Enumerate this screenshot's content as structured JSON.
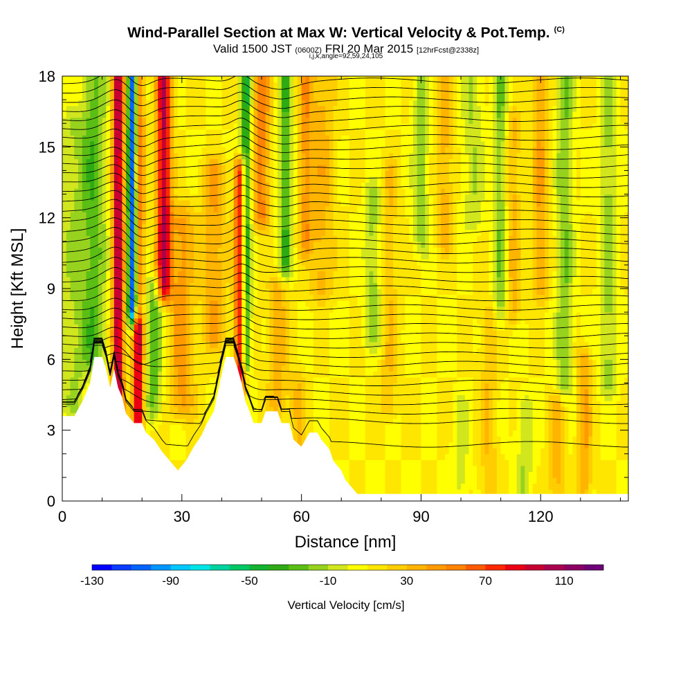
{
  "title": {
    "main": "Wind-Parallel Section at Max W: Vertical Velocity & Pot.Temp.",
    "copyright": "(C)",
    "valid_prefix": "Valid 1500 JST",
    "valid_utc": "(0600Z)",
    "valid_date": "FRI 20 Mar 2015",
    "forecast": "[12hrFcst@2338z]",
    "params": "i,j,k,angle=92,59,24,105"
  },
  "chart_data": {
    "type": "heatmap",
    "xlabel": "Distance [nm]",
    "ylabel": "Height [Kft MSL]",
    "xlim": [
      0,
      142
    ],
    "ylim": [
      0,
      18
    ],
    "x_ticks": [
      0,
      30,
      60,
      90,
      120
    ],
    "y_ticks": [
      0,
      3,
      6,
      9,
      12,
      15,
      18
    ],
    "colorbar": {
      "label": "Vertical Velocity [cm/s]",
      "ticks": [
        -130,
        -90,
        -50,
        -10,
        30,
        70,
        110
      ],
      "bins": [
        -130,
        -120,
        -110,
        -100,
        -90,
        -80,
        -70,
        -60,
        -50,
        -40,
        -30,
        -20,
        -10,
        0,
        10,
        20,
        30,
        40,
        50,
        60,
        70,
        80,
        90,
        100,
        110,
        120,
        130
      ],
      "colors": [
        "#0000ff",
        "#0a3cff",
        "#0064ff",
        "#0096ff",
        "#00c8ff",
        "#00e6e6",
        "#00d2a0",
        "#00c864",
        "#14b432",
        "#2daa14",
        "#5abe14",
        "#96d21e",
        "#d2e61e",
        "#ffff00",
        "#ffe600",
        "#ffcd00",
        "#ffb400",
        "#ff9b00",
        "#ff8200",
        "#ff5a00",
        "#ff2800",
        "#eb0014",
        "#c80032",
        "#aa0050",
        "#8c0064",
        "#6e0078"
      ]
    },
    "terrain_kft": [
      [
        0,
        3.6
      ],
      [
        3,
        3.6
      ],
      [
        5,
        4.2
      ],
      [
        7,
        5.0
      ],
      [
        8,
        6.1
      ],
      [
        10,
        6.1
      ],
      [
        11,
        5.6
      ],
      [
        12,
        4.8
      ],
      [
        13,
        5.6
      ],
      [
        14,
        4.8
      ],
      [
        15,
        4.4
      ],
      [
        16,
        3.7
      ],
      [
        18,
        3.3
      ],
      [
        20,
        3.3
      ],
      [
        21,
        2.9
      ],
      [
        23,
        2.6
      ],
      [
        25,
        2.1
      ],
      [
        27,
        1.7
      ],
      [
        29,
        1.3
      ],
      [
        31,
        1.7
      ],
      [
        33,
        2.3
      ],
      [
        35,
        2.8
      ],
      [
        36,
        3.2
      ],
      [
        38,
        3.8
      ],
      [
        39,
        4.6
      ],
      [
        40,
        5.4
      ],
      [
        41,
        6.1
      ],
      [
        43,
        6.1
      ],
      [
        44,
        5.6
      ],
      [
        45,
        5.0
      ],
      [
        46,
        4.2
      ],
      [
        47,
        3.8
      ],
      [
        48,
        3.3
      ],
      [
        50,
        3.3
      ],
      [
        51,
        3.8
      ],
      [
        54,
        3.8
      ],
      [
        55,
        3.3
      ],
      [
        57,
        3.3
      ],
      [
        58,
        2.6
      ],
      [
        60,
        2.3
      ],
      [
        62,
        2.9
      ],
      [
        64,
        2.9
      ],
      [
        65,
        2.6
      ],
      [
        67,
        2.2
      ],
      [
        68,
        1.7
      ],
      [
        70,
        1.3
      ],
      [
        71,
        0.9
      ],
      [
        72,
        0.7
      ],
      [
        74,
        0.3
      ],
      [
        142,
        0.3
      ]
    ],
    "vertical_velocity_features": [
      {
        "x": 14,
        "w": 1.4,
        "peak": 95,
        "z_from": 3.5,
        "z_to": 18
      },
      {
        "x": 17.5,
        "w": 1.0,
        "peak": -120,
        "z_from": 8,
        "z_to": 18
      },
      {
        "x": 19.5,
        "w": 1.2,
        "peak": 45,
        "z_from": 9,
        "z_to": 18
      },
      {
        "x": 25.5,
        "w": 1.8,
        "peak": 90,
        "z_from": 9,
        "z_to": 18
      },
      {
        "x": 19,
        "w": 1.3,
        "peak": 90,
        "z_from": 3,
        "z_to": 7.5
      },
      {
        "x": 8,
        "w": 3.0,
        "peak": -35,
        "z_from": 6,
        "z_to": 18
      },
      {
        "x": 3,
        "w": 3.5,
        "peak": -20,
        "z_from": 4,
        "z_to": 16
      },
      {
        "x": 23,
        "w": 2.0,
        "peak": -35,
        "z_from": 4,
        "z_to": 9
      },
      {
        "x": 30,
        "w": 3.0,
        "peak": 35,
        "z_from": 4,
        "z_to": 12
      },
      {
        "x": 38,
        "w": 3.0,
        "peak": 30,
        "z_from": 7,
        "z_to": 14
      },
      {
        "x": 46,
        "w": 1.3,
        "peak": -55,
        "z_from": 6,
        "z_to": 18
      },
      {
        "x": 44.5,
        "w": 1.3,
        "peak": 80,
        "z_from": 5,
        "z_to": 14
      },
      {
        "x": 50,
        "w": 2.0,
        "peak": 45,
        "z_from": 12,
        "z_to": 18
      },
      {
        "x": 56,
        "w": 1.6,
        "peak": -40,
        "z_from": 10,
        "z_to": 18
      },
      {
        "x": 61,
        "w": 1.6,
        "peak": 35,
        "z_from": 11,
        "z_to": 18
      },
      {
        "x": 54,
        "w": 2.5,
        "peak": 25,
        "z_from": 4,
        "z_to": 9
      },
      {
        "x": 59,
        "w": 2.0,
        "peak": 20,
        "z_from": 1,
        "z_to": 5
      },
      {
        "x": 65,
        "w": 3.0,
        "peak": 25,
        "z_from": 9,
        "z_to": 18
      },
      {
        "x": 78,
        "w": 2.2,
        "peak": -25,
        "z_from": 7,
        "z_to": 13
      },
      {
        "x": 82,
        "w": 2.0,
        "peak": 20,
        "z_from": 4,
        "z_to": 14
      },
      {
        "x": 90,
        "w": 2.0,
        "peak": -25,
        "z_from": 11,
        "z_to": 18
      },
      {
        "x": 96,
        "w": 2.0,
        "peak": 25,
        "z_from": 11,
        "z_to": 18
      },
      {
        "x": 103,
        "w": 2.5,
        "peak": -20,
        "z_from": 12,
        "z_to": 18
      },
      {
        "x": 107,
        "w": 2.0,
        "peak": 20,
        "z_from": 0.5,
        "z_to": 8
      },
      {
        "x": 110,
        "w": 1.8,
        "peak": -30,
        "z_from": 8,
        "z_to": 18
      },
      {
        "x": 113,
        "w": 2.0,
        "peak": 25,
        "z_from": 8,
        "z_to": 16
      },
      {
        "x": 120,
        "w": 2.0,
        "peak": 30,
        "z_from": 9,
        "z_to": 18
      },
      {
        "x": 126,
        "w": 2.0,
        "peak": -30,
        "z_from": 5,
        "z_to": 18
      },
      {
        "x": 131,
        "w": 1.8,
        "peak": 30,
        "z_from": 0.5,
        "z_to": 6
      },
      {
        "x": 137,
        "w": 2.0,
        "peak": -25,
        "z_from": 5,
        "z_to": 18
      },
      {
        "x": 100,
        "w": 2.0,
        "peak": -15,
        "z_from": 0.5,
        "z_to": 4
      },
      {
        "x": 116,
        "w": 2.0,
        "peak": -20,
        "z_from": 0.5,
        "z_to": 4
      },
      {
        "x": 124,
        "w": 2.0,
        "peak": 25,
        "z_from": 0.5,
        "z_to": 4
      }
    ],
    "theta_isentropes_kft": [
      2.4,
      3.4,
      3.8,
      4.2,
      4.6,
      5.0,
      5.4,
      5.8,
      6.2,
      6.6,
      7.0,
      7.4,
      7.8,
      8.2,
      8.6,
      9.0,
      9.4,
      9.8,
      10.2,
      10.6,
      11.0,
      11.4,
      11.8,
      12.2,
      12.6,
      13.0,
      13.4,
      13.8,
      14.2,
      14.6,
      15.0,
      15.4,
      15.8,
      16.2,
      16.6,
      17.0,
      17.4,
      17.8
    ]
  }
}
